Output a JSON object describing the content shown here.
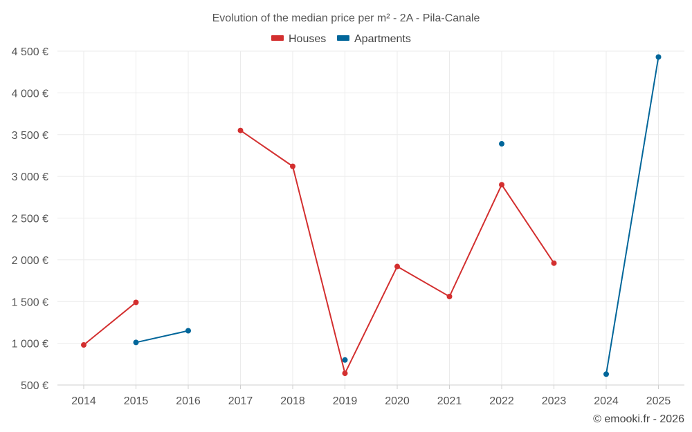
{
  "chart_data": {
    "type": "line",
    "title": "Evolution of the median price per m² - 2A - Pila-Canale",
    "xlabel": "",
    "ylabel": "",
    "categories": [
      "2014",
      "2015",
      "2016",
      "2017",
      "2018",
      "2019",
      "2020",
      "2021",
      "2022",
      "2023",
      "2024",
      "2025"
    ],
    "y_ticks": [
      500,
      1000,
      1500,
      2000,
      2500,
      3000,
      3500,
      4000,
      4500
    ],
    "y_tick_labels": [
      "500 €",
      "1 000 €",
      "1 500 €",
      "2 000 €",
      "2 500 €",
      "3 000 €",
      "3 500 €",
      "4 000 €",
      "4 500 €"
    ],
    "ylim": [
      500,
      4600
    ],
    "grid": true,
    "legend_position": "top-center",
    "series": [
      {
        "name": "Houses",
        "color": "#d32f2f",
        "values": [
          980,
          1490,
          null,
          3550,
          3120,
          640,
          1920,
          1560,
          2900,
          1960,
          null,
          null
        ]
      },
      {
        "name": "Apartments",
        "color": "#01669a",
        "values": [
          null,
          1010,
          1150,
          null,
          null,
          800,
          null,
          null,
          3390,
          null,
          630,
          4430
        ]
      }
    ]
  },
  "footer": {
    "copyright": "© emooki.fr - 2026"
  }
}
